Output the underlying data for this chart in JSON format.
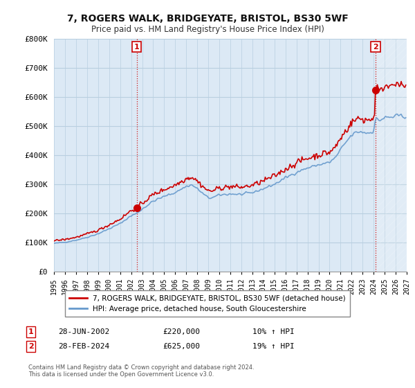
{
  "title": "7, ROGERS WALK, BRIDGEYATE, BRISTOL, BS30 5WF",
  "subtitle": "Price paid vs. HM Land Registry's House Price Index (HPI)",
  "legend_line1": "7, ROGERS WALK, BRIDGEYATE, BRISTOL, BS30 5WF (detached house)",
  "legend_line2": "HPI: Average price, detached house, South Gloucestershire",
  "annotation1_label": "1",
  "annotation1_date": "28-JUN-2002",
  "annotation1_price": "£220,000",
  "annotation1_hpi": "10% ↑ HPI",
  "annotation2_label": "2",
  "annotation2_date": "28-FEB-2024",
  "annotation2_price": "£625,000",
  "annotation2_hpi": "19% ↑ HPI",
  "footnote": "Contains HM Land Registry data © Crown copyright and database right 2024.\nThis data is licensed under the Open Government Licence v3.0.",
  "line_color_red": "#cc0000",
  "line_color_blue": "#6699cc",
  "annotation_color": "#cc0000",
  "bg_color": "#ffffff",
  "chart_bg_color": "#dce9f5",
  "grid_color": "#b8cfe0",
  "ylim": [
    0,
    800000
  ],
  "yticks": [
    0,
    100000,
    200000,
    300000,
    400000,
    500000,
    600000,
    700000,
    800000
  ],
  "ytick_labels": [
    "£0",
    "£100K",
    "£200K",
    "£300K",
    "£400K",
    "£500K",
    "£600K",
    "£700K",
    "£800K"
  ],
  "sale1_x": 2002.5,
  "sale1_y": 220000,
  "sale2_x": 2024.17,
  "sale2_y": 625000,
  "xmin": 1995,
  "xmax": 2027
}
